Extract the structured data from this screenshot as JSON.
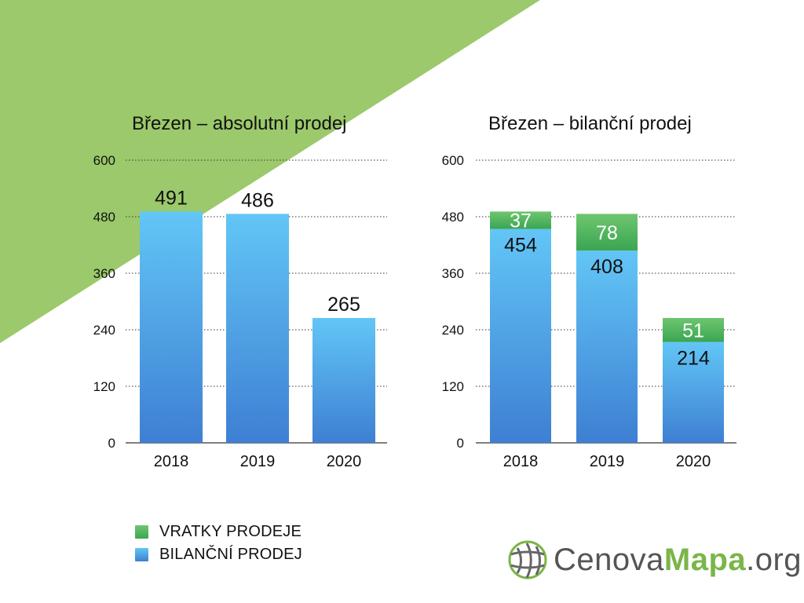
{
  "colors": {
    "background_triangle": "#9bc96b",
    "bar_blue_top": "#62c6f6",
    "bar_blue_bottom": "#3e7fd3",
    "bar_green_top": "#6fc66f",
    "bar_green_bottom": "#3aa552",
    "grid": "#333333",
    "logo_green": "#7ab648",
    "logo_gray": "#555555"
  },
  "chart_data": [
    {
      "type": "bar",
      "title": "Březen – absolutní prodej",
      "categories": [
        "2018",
        "2019",
        "2020"
      ],
      "series": [
        {
          "name": "BILANČNÍ PRODEJ",
          "values": [
            491,
            486,
            265
          ]
        }
      ],
      "data_labels": [
        "491",
        "486",
        "265"
      ],
      "ylim": [
        0,
        600
      ],
      "yticks": [
        "0",
        "120",
        "240",
        "360",
        "480",
        "600"
      ],
      "grid": true,
      "xlabel": "",
      "ylabel": ""
    },
    {
      "type": "bar",
      "stacked": true,
      "title": "Březen – bilanční prodej",
      "categories": [
        "2018",
        "2019",
        "2020"
      ],
      "series": [
        {
          "name": "BILANČNÍ PRODEJ",
          "values": [
            454,
            408,
            214
          ]
        },
        {
          "name": "VRATKY PRODEJE",
          "values": [
            37,
            78,
            51
          ]
        }
      ],
      "ylim": [
        0,
        600
      ],
      "yticks": [
        "0",
        "120",
        "240",
        "360",
        "480",
        "600"
      ],
      "grid": true,
      "xlabel": "",
      "ylabel": ""
    }
  ],
  "legend": [
    {
      "label": "VRATKY PRODEJE",
      "color": "green"
    },
    {
      "label": "BILANČNÍ PRODEJ",
      "color": "blue"
    }
  ],
  "logo": {
    "part1": "Cenova",
    "part2": "Mapa",
    "part3": ".org",
    "icon": "globe-icon"
  }
}
